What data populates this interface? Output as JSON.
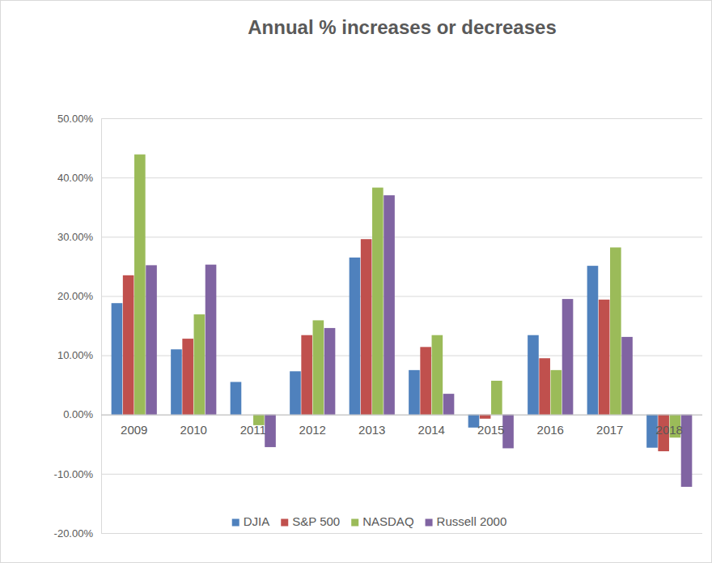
{
  "chart_data": {
    "type": "bar",
    "title": "Annual % increases or decreases",
    "categories": [
      "2009",
      "2010",
      "2011",
      "2012",
      "2013",
      "2014",
      "2015",
      "2016",
      "2017",
      "2018"
    ],
    "series": [
      {
        "name": "DJIA",
        "color": "#4f81bd",
        "values": [
          18.8,
          11.0,
          5.5,
          7.3,
          26.5,
          7.5,
          -2.2,
          13.4,
          25.1,
          -5.6
        ]
      },
      {
        "name": "S&P 500",
        "color": "#c0504d",
        "values": [
          23.5,
          12.8,
          0.0,
          13.4,
          29.6,
          11.4,
          -0.7,
          9.5,
          19.4,
          -6.2
        ]
      },
      {
        "name": "NASDAQ",
        "color": "#9bbb59",
        "values": [
          43.9,
          16.9,
          -1.8,
          15.9,
          38.3,
          13.4,
          5.7,
          7.5,
          28.2,
          -3.9
        ]
      },
      {
        "name": "Russell 2000",
        "color": "#8064a2",
        "values": [
          25.2,
          25.3,
          -5.5,
          14.6,
          37.0,
          3.5,
          -5.7,
          19.5,
          13.1,
          -12.2
        ]
      }
    ],
    "ylim": [
      -20,
      50
    ],
    "yticks": [
      {
        "value": -20,
        "label": "-20.00%"
      },
      {
        "value": -10,
        "label": "-10.00%"
      },
      {
        "value": 0,
        "label": "0.00%"
      },
      {
        "value": 10,
        "label": "10.00%"
      },
      {
        "value": 20,
        "label": "20.00%"
      },
      {
        "value": 30,
        "label": "30.00%"
      },
      {
        "value": 40,
        "label": "40.00%"
      },
      {
        "value": 50,
        "label": "50.00%"
      }
    ],
    "grid": true,
    "legend": "bottom"
  }
}
